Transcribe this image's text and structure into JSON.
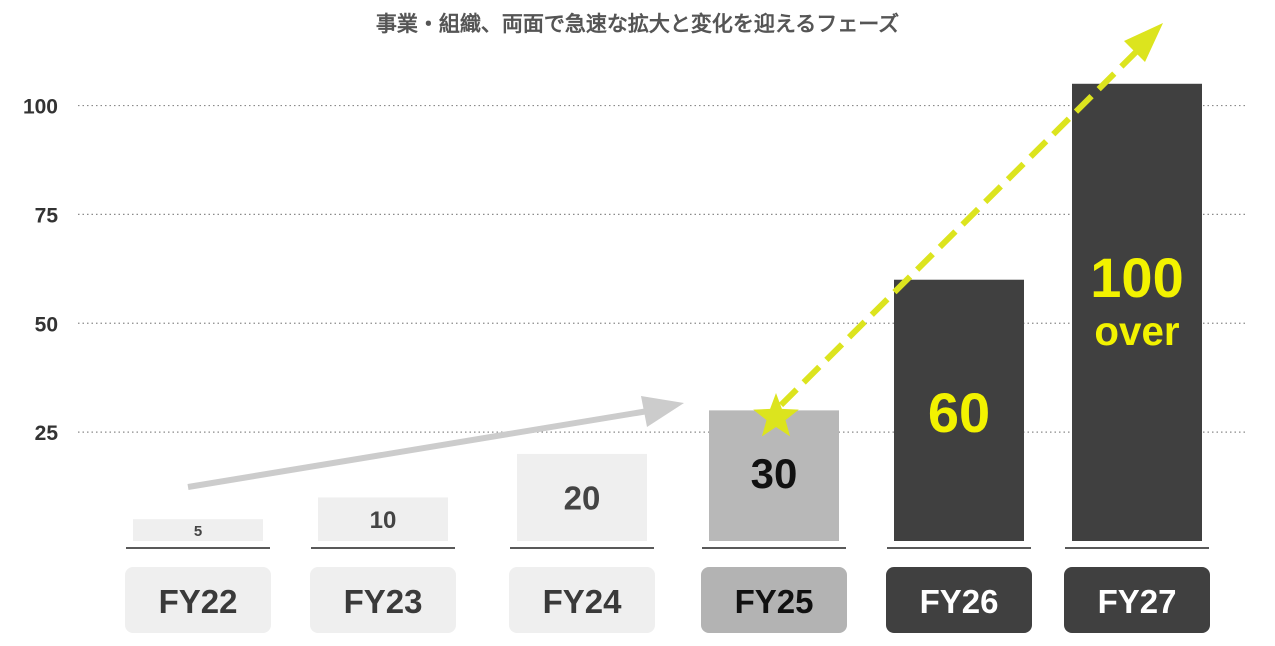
{
  "chart_data": {
    "type": "bar",
    "title": "事業・組織、両面で急速な拡大と変化を迎えるフェーズ",
    "categories": [
      "FY22",
      "FY23",
      "FY24",
      "FY25",
      "FY26",
      "FY27"
    ],
    "values": [
      5,
      10,
      20,
      30,
      60,
      105
    ],
    "value_labels": [
      "5",
      "10",
      "20",
      "30",
      "60",
      "100\nover"
    ],
    "y_ticks": [
      25,
      50,
      75,
      100
    ],
    "ylim": [
      0,
      110
    ],
    "grid": "horizontal dotted",
    "xlabel": "",
    "ylabel": "",
    "annotations": [
      {
        "kind": "arrow",
        "style": "solid gray",
        "from_category": "FY22",
        "to_category": "FY25"
      },
      {
        "kind": "star",
        "at_category": "FY25"
      },
      {
        "kind": "arrow",
        "style": "dashed yellow-green",
        "from_category": "FY25",
        "to_category": "FY27"
      }
    ]
  },
  "colors": {
    "past_bar": "#efefef",
    "past_label_bg": "#efefef",
    "current_bar": "#b8b8b8",
    "current_label_bg": "#b3b3b3",
    "future_bar": "#404040",
    "future_label_bg": "#404040",
    "past_value_text": "#444444",
    "current_value_text": "#111111",
    "future_value_text": "#f2f200",
    "future_label_text": "#ffffff",
    "dark_label_text": "#3a3a3a",
    "grid": "#8a8a8a",
    "solid_arrow": "#cccccc",
    "dashed_arrow": "#dce41e",
    "star": "#dce41e",
    "tick_text": "#333333",
    "title_text": "#555555"
  },
  "bar_styles": [
    "past",
    "past",
    "past",
    "current",
    "future",
    "future"
  ]
}
